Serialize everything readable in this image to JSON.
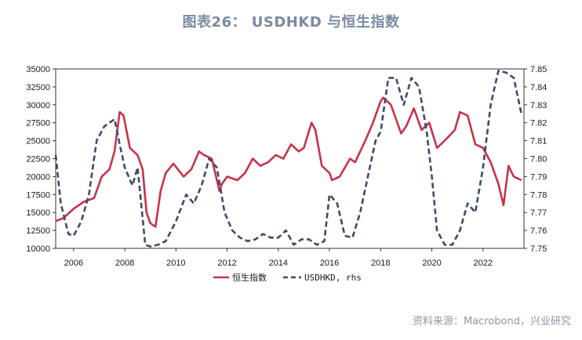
{
  "title": "图表26： USDHKD 与恒生指数",
  "source": "资料来源：Macrobond，兴业研究",
  "chart_data": {
    "type": "line",
    "title": "图表26： USDHKD 与恒生指数",
    "x_ticks": [
      "2006",
      "2008",
      "2010",
      "2012",
      "2014",
      "2016",
      "2018",
      "2020",
      "2022"
    ],
    "xlim": [
      2005.3,
      2023.6
    ],
    "y_left": {
      "ticks": [
        "10000",
        "12500",
        "15000",
        "17500",
        "20000",
        "22500",
        "25000",
        "27500",
        "30000",
        "32500",
        "35000"
      ],
      "ylim": [
        10000,
        35000
      ]
    },
    "y_right": {
      "ticks": [
        "7.75",
        "7.76",
        "7.77",
        "7.78",
        "7.79",
        "7.80",
        "7.81",
        "7.82",
        "7.83",
        "7.84",
        "7.85"
      ],
      "ylim": [
        7.75,
        7.85
      ]
    },
    "legend": {
      "position": "bottom-center",
      "items": [
        "恒生指数",
        "USDHKD, rhs"
      ]
    },
    "series": [
      {
        "name": "恒生指数",
        "axis": "left",
        "color": "#c8324a",
        "style": "solid",
        "x": [
          2005.3,
          2005.6,
          2006.0,
          2006.4,
          2006.8,
          2007.1,
          2007.4,
          2007.6,
          2007.8,
          2007.95,
          2008.2,
          2008.5,
          2008.7,
          2008.85,
          2009.0,
          2009.2,
          2009.4,
          2009.6,
          2009.9,
          2010.3,
          2010.6,
          2010.9,
          2011.1,
          2011.4,
          2011.7,
          2011.8,
          2012.0,
          2012.4,
          2012.7,
          2013.0,
          2013.3,
          2013.6,
          2013.9,
          2014.2,
          2014.5,
          2014.8,
          2015.0,
          2015.3,
          2015.45,
          2015.7,
          2016.0,
          2016.1,
          2016.4,
          2016.8,
          2017.0,
          2017.4,
          2017.7,
          2018.0,
          2018.1,
          2018.4,
          2018.8,
          2019.0,
          2019.3,
          2019.6,
          2019.9,
          2020.2,
          2020.5,
          2020.9,
          2021.1,
          2021.4,
          2021.7,
          2022.0,
          2022.3,
          2022.6,
          2022.8,
          2023.0,
          2023.2,
          2023.5
        ],
        "y": [
          13800,
          14200,
          15500,
          16500,
          17000,
          20000,
          21000,
          23500,
          29000,
          28500,
          24000,
          23000,
          21000,
          15000,
          13500,
          13000,
          18000,
          20500,
          21800,
          20000,
          21000,
          23500,
          23000,
          22500,
          18000,
          19000,
          20000,
          19500,
          20500,
          22500,
          21500,
          22000,
          23000,
          22500,
          24500,
          23500,
          24000,
          27500,
          26500,
          21500,
          20500,
          19500,
          20000,
          22500,
          22000,
          25000,
          27500,
          30500,
          31000,
          30000,
          26000,
          27000,
          29500,
          26500,
          27500,
          24000,
          25000,
          26500,
          29000,
          28500,
          24500,
          24000,
          22000,
          19000,
          16000,
          21500,
          20000,
          19500
        ]
      },
      {
        "name": "USDHKD, rhs",
        "axis": "right",
        "color": "#3d4b68",
        "style": "dashed",
        "x": [
          2005.3,
          2005.5,
          2005.8,
          2006.0,
          2006.3,
          2006.6,
          2006.9,
          2007.2,
          2007.6,
          2007.8,
          2008.0,
          2008.3,
          2008.5,
          2008.8,
          2009.0,
          2009.3,
          2009.6,
          2010.0,
          2010.4,
          2010.7,
          2011.0,
          2011.3,
          2011.6,
          2011.9,
          2012.2,
          2012.5,
          2012.8,
          2013.1,
          2013.4,
          2013.7,
          2014.0,
          2014.3,
          2014.6,
          2014.9,
          2015.2,
          2015.5,
          2015.8,
          2016.0,
          2016.3,
          2016.6,
          2016.9,
          2017.2,
          2017.5,
          2017.8,
          2018.0,
          2018.3,
          2018.6,
          2018.9,
          2019.2,
          2019.5,
          2019.8,
          2020.0,
          2020.2,
          2020.5,
          2020.8,
          2021.1,
          2021.4,
          2021.7,
          2022.0,
          2022.3,
          2022.6,
          2022.9,
          2023.2,
          2023.5
        ],
        "y": [
          7.802,
          7.775,
          7.758,
          7.757,
          7.765,
          7.78,
          7.81,
          7.818,
          7.822,
          7.808,
          7.795,
          7.785,
          7.795,
          7.752,
          7.751,
          7.752,
          7.754,
          7.765,
          7.78,
          7.775,
          7.785,
          7.8,
          7.795,
          7.77,
          7.76,
          7.756,
          7.754,
          7.755,
          7.758,
          7.756,
          7.756,
          7.76,
          7.752,
          7.755,
          7.755,
          7.752,
          7.754,
          7.78,
          7.775,
          7.757,
          7.756,
          7.77,
          7.79,
          7.81,
          7.815,
          7.845,
          7.845,
          7.83,
          7.845,
          7.84,
          7.815,
          7.79,
          7.76,
          7.752,
          7.752,
          7.76,
          7.775,
          7.77,
          7.795,
          7.83,
          7.849,
          7.848,
          7.845,
          7.825
        ]
      }
    ]
  }
}
